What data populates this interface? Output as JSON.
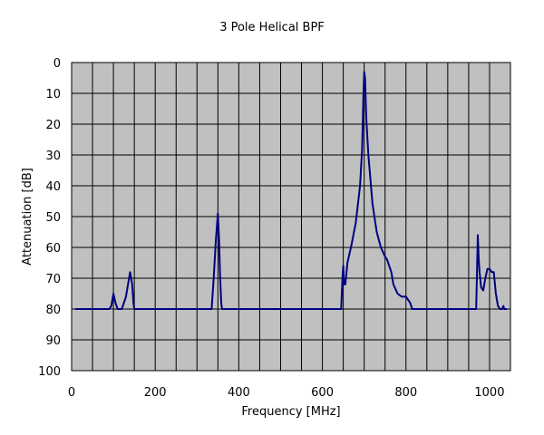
{
  "chart_data": {
    "type": "line",
    "title": "3 Pole Helical BPF",
    "xlabel": "Frequency [MHz]",
    "ylabel": "Attenuation [dB]",
    "xlim": [
      0,
      1050
    ],
    "ylim": [
      0,
      100
    ],
    "y_inverted": true,
    "xticks": [
      0,
      200,
      400,
      600,
      800,
      1000
    ],
    "yticks": [
      0,
      10,
      20,
      30,
      40,
      50,
      60,
      70,
      80,
      90,
      100
    ],
    "grid": true,
    "x_minor_step": 50,
    "legend": "none",
    "colors": {
      "plot_background": "#c0c0c0",
      "grid": "#000000",
      "line": "#000080"
    },
    "series": [
      {
        "x": [
          10,
          90,
          95,
          100,
          105,
          110,
          120,
          130,
          135,
          140,
          145,
          148,
          150,
          155,
          200,
          300,
          335,
          340,
          345,
          350,
          353,
          355,
          358,
          360,
          365,
          400,
          500,
          600,
          645,
          648,
          650,
          652,
          655,
          660,
          670,
          680,
          690,
          695,
          698,
          700,
          702,
          705,
          710,
          720,
          730,
          740,
          750,
          755,
          760,
          765,
          770,
          780,
          790,
          800,
          805,
          810,
          815,
          820,
          900,
          968,
          970,
          972,
          974,
          976,
          980,
          985,
          990,
          995,
          1000,
          1005,
          1010,
          1015,
          1020,
          1025,
          1030,
          1033,
          1035,
          1040
        ],
        "y": [
          80,
          80,
          79,
          75,
          78,
          80,
          80,
          76,
          72,
          68,
          72,
          78,
          80,
          80,
          80,
          80,
          80,
          70,
          58,
          49,
          58,
          68,
          78,
          80,
          80,
          80,
          80,
          80,
          80,
          70,
          66,
          72,
          72,
          65,
          59,
          52,
          40,
          28,
          12,
          3,
          5,
          18,
          30,
          46,
          55,
          60,
          63,
          64,
          66,
          68,
          72,
          75,
          76,
          76,
          77,
          78,
          80,
          80,
          80,
          80,
          68,
          56,
          64,
          68,
          73,
          74,
          70,
          67,
          67,
          68,
          68,
          75,
          79,
          80,
          80,
          79,
          80,
          80
        ]
      }
    ]
  }
}
